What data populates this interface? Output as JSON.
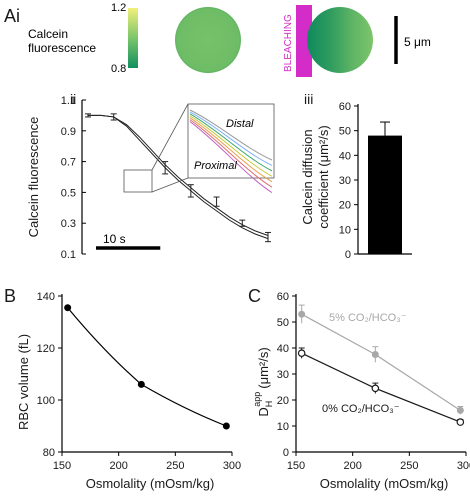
{
  "panel_labels": {
    "a": "Ai",
    "ii": "ii",
    "iii": "iii",
    "b": "B",
    "c": "C"
  },
  "panel_ai": {
    "colorbar_label_line1": "Calcein",
    "colorbar_label_line2": "fluorescence",
    "colorbar_max": "1.2",
    "colorbar_min": "0.8",
    "bleach_label": "BLEACHING",
    "scale_label": "5 μm",
    "colors": {
      "high": "#f2f07a",
      "mid": "#7cc56a",
      "low": "#0f9060",
      "bleach": "#d42cc8"
    }
  },
  "chart_data": [
    {
      "id": "ii",
      "type": "line",
      "ylabel": "Calcein fluorescence",
      "ylim": [
        0.1,
        1.1
      ],
      "yticks": [
        "0.1",
        "0.3",
        "0.5",
        "0.7",
        "0.9",
        "1.1"
      ],
      "ytick_values": [
        0.1,
        0.3,
        0.5,
        0.7,
        0.9,
        1.1
      ],
      "time_scale_label": "10 s",
      "time_scale_seconds": 10,
      "x_seconds": [
        0,
        2,
        4,
        6,
        8,
        10,
        12,
        14,
        16,
        18,
        20,
        22,
        24,
        26,
        28
      ],
      "series": [
        {
          "values": [
            1.0,
            1.0,
            0.99,
            0.93,
            0.84,
            0.75,
            0.66,
            0.58,
            0.51,
            0.44,
            0.38,
            0.32,
            0.27,
            0.23,
            0.2
          ]
        },
        {
          "values": [
            1.0,
            1.0,
            0.99,
            0.94,
            0.86,
            0.77,
            0.68,
            0.6,
            0.53,
            0.46,
            0.4,
            0.34,
            0.29,
            0.25,
            0.22
          ]
        }
      ],
      "error_bars": [
        {
          "x": 0,
          "y": 1.0,
          "err": 0.01
        },
        {
          "x": 4,
          "y": 0.99,
          "err": 0.02
        },
        {
          "x": 12,
          "y": 0.66,
          "err": 0.04
        },
        {
          "x": 16,
          "y": 0.51,
          "err": 0.04
        },
        {
          "x": 20,
          "y": 0.44,
          "err": 0.03
        },
        {
          "x": 24,
          "y": 0.3,
          "err": 0.02
        },
        {
          "x": 28,
          "y": 0.21,
          "err": 0.03
        }
      ],
      "inset": {
        "labels": [
          "Distal",
          "Proximal"
        ],
        "colors": [
          "#9a9a9a",
          "#7fb0ff",
          "#3da86b",
          "#c8c83a",
          "#e8a14a",
          "#e07070",
          "#c060c0"
        ]
      }
    },
    {
      "id": "iii",
      "type": "bar",
      "ylabel_line1": "Calcein diffusion",
      "ylabel_line2": "coefficient (μm²/s)",
      "ylim": [
        0,
        60
      ],
      "yticks": [
        "0",
        "10",
        "20",
        "30",
        "40",
        "50",
        "60"
      ],
      "ytick_values": [
        0,
        10,
        20,
        30,
        40,
        50,
        60
      ],
      "values": [
        48
      ],
      "errors": [
        5.5
      ]
    },
    {
      "id": "B",
      "type": "line",
      "xlabel": "Osmolality (mOsm/kg)",
      "ylabel": "RBC volume (fL)",
      "xlim": [
        150,
        300
      ],
      "ylim": [
        80,
        140
      ],
      "xticks": [
        "150",
        "200",
        "250",
        "300"
      ],
      "xtick_values": [
        150,
        200,
        250,
        300
      ],
      "yticks": [
        "80",
        "100",
        "120",
        "140"
      ],
      "ytick_values": [
        80,
        100,
        120,
        140
      ],
      "x": [
        155,
        220,
        295
      ],
      "values": [
        135.5,
        106,
        90
      ]
    },
    {
      "id": "C",
      "type": "line",
      "xlabel": "Osmolality (mOsm/kg)",
      "ylabel": "D",
      "ylabel_sub": "H",
      "ylabel_sup": "app",
      "ylabel_units": "(μm²/s)",
      "xlim": [
        150,
        300
      ],
      "ylim": [
        0,
        60
      ],
      "xticks": [
        "150",
        "200",
        "250",
        "300"
      ],
      "xtick_values": [
        150,
        200,
        250,
        300
      ],
      "yticks": [
        "0",
        "10",
        "20",
        "30",
        "40",
        "50",
        "60"
      ],
      "ytick_values": [
        0,
        10,
        20,
        30,
        40,
        50,
        60
      ],
      "x": [
        155,
        220,
        295
      ],
      "series": [
        {
          "name": "5% CO₂/HCO₃⁻",
          "values": [
            53,
            37.5,
            16
          ],
          "errors": [
            3.5,
            3,
            1.5
          ],
          "color": "#a8a8a8"
        },
        {
          "name": "0% CO₂/HCO₃⁻",
          "values": [
            38,
            24.5,
            11.5
          ],
          "errors": [
            2,
            2,
            1
          ],
          "color": "#1a1a1a"
        }
      ]
    }
  ]
}
